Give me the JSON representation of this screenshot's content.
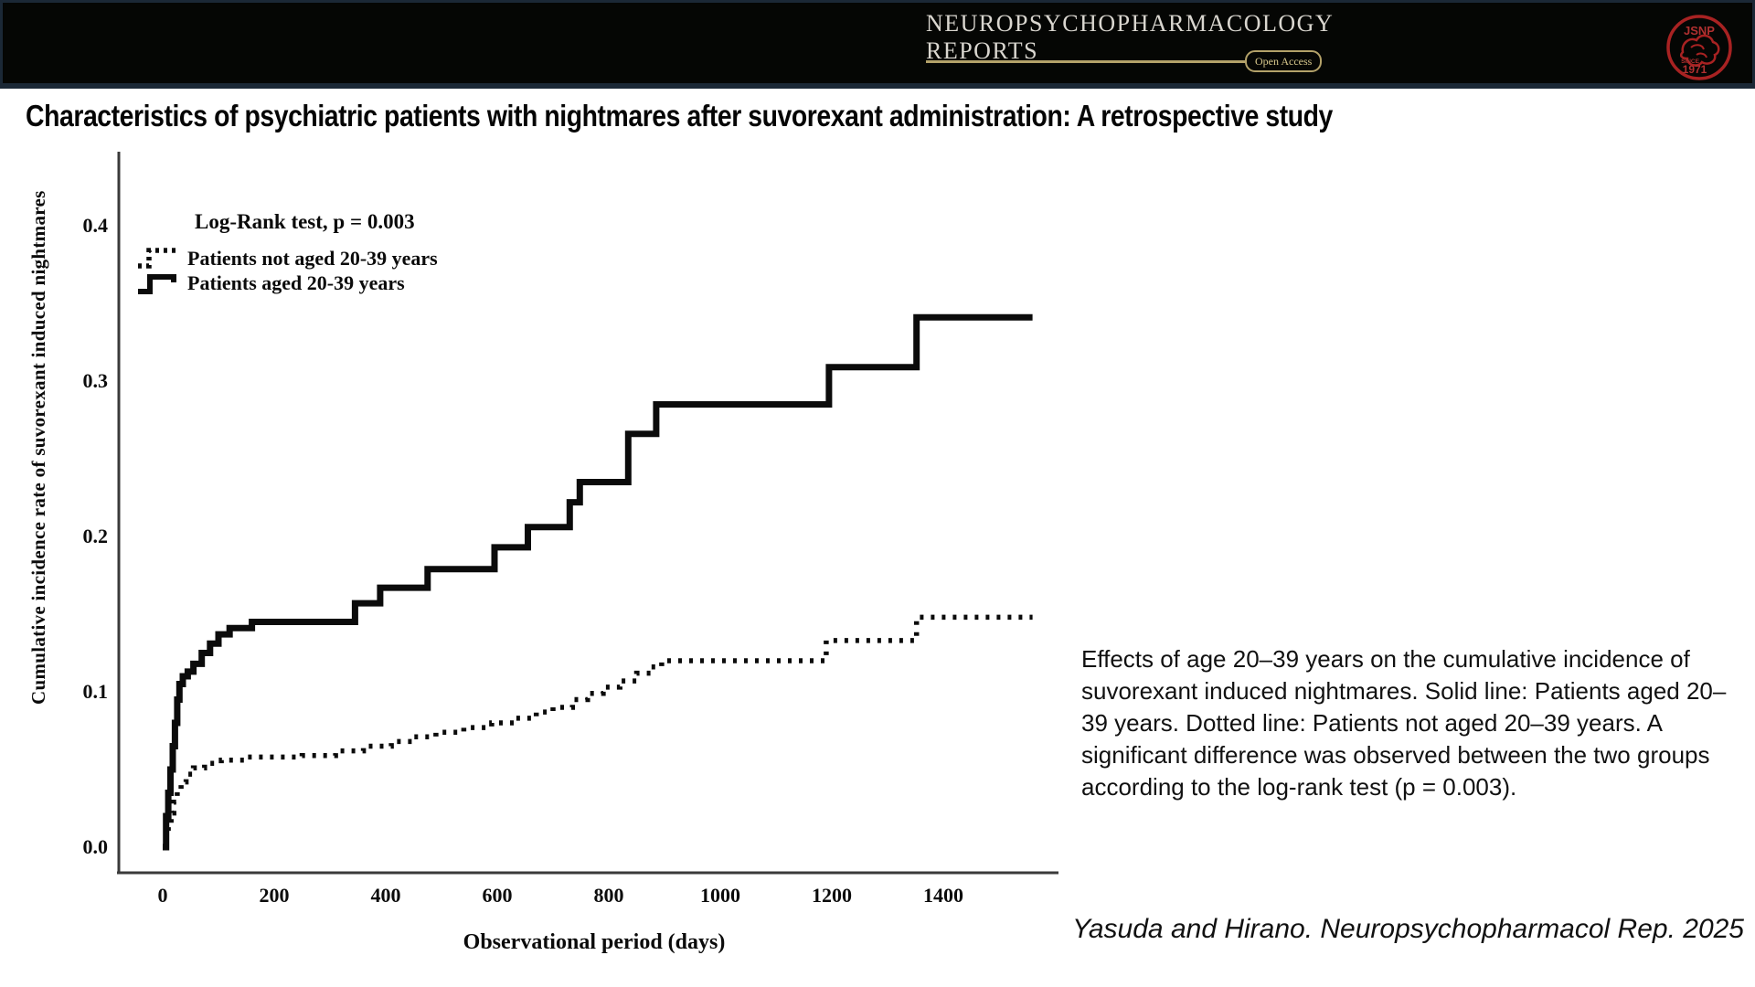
{
  "header": {
    "journal_line1": "NEUROPSYCHOPHARMACOLOGY",
    "journal_line2": "REPORTS",
    "open_access_label": "Open Access",
    "logo_acronym": "JSNP",
    "logo_since": "SINCE",
    "logo_year": "1971",
    "colors": {
      "bar_background": "#050604",
      "border_navy": "#1b2836",
      "gold": "#b3a169",
      "journal_text": "#d9d6cf",
      "logo_red": "#a82222"
    }
  },
  "title": "Characteristics of psychiatric patients with nightmares after suvorexant administration: A retrospective study",
  "chart_data": {
    "type": "line",
    "subtype": "kaplan-meier cumulative incidence step curves",
    "annotation": "Log-Rank test, p = 0.003",
    "xlabel": "Observational period (days)",
    "ylabel": "Cumulative incidence rate of suvorexant induced nightmares",
    "xlim": [
      0,
      1600
    ],
    "ylim": [
      0,
      0.42
    ],
    "x_ticks": [
      "0",
      "200",
      "400",
      "600",
      "800",
      "1000",
      "1200",
      "1400"
    ],
    "y_ticks": [
      "0.0",
      "0.1",
      "0.2",
      "0.3",
      "0.4"
    ],
    "grid": false,
    "legend_position": "upper left inside plot",
    "line_color": "#0b0b0b",
    "series": [
      {
        "name": "Patients not aged 20-39 years",
        "style": "dotted",
        "x": [
          0,
          6,
          10,
          15,
          20,
          26,
          33,
          42,
          55,
          75,
          105,
          150,
          250,
          310,
          360,
          410,
          450,
          490,
          540,
          590,
          630,
          670,
          700,
          735,
          762,
          790,
          820,
          850,
          875,
          895,
          1190,
          1352,
          1560
        ],
        "y": [
          0,
          0.008,
          0.015,
          0.022,
          0.029,
          0.036,
          0.042,
          0.047,
          0.051,
          0.054,
          0.056,
          0.058,
          0.059,
          0.062,
          0.065,
          0.068,
          0.071,
          0.074,
          0.077,
          0.08,
          0.083,
          0.087,
          0.09,
          0.095,
          0.099,
          0.103,
          0.107,
          0.112,
          0.116,
          0.12,
          0.133,
          0.148,
          0.148
        ]
      },
      {
        "name": "Patients aged 20-39 years",
        "style": "solid",
        "x": [
          0,
          6,
          10,
          14,
          18,
          22,
          26,
          30,
          36,
          45,
          55,
          70,
          85,
          100,
          120,
          160,
          345,
          390,
          475,
          595,
          655,
          730,
          748,
          835,
          885,
          1195,
          1352,
          1560
        ],
        "y": [
          0,
          0.02,
          0.035,
          0.05,
          0.065,
          0.08,
          0.095,
          0.105,
          0.11,
          0.113,
          0.118,
          0.125,
          0.131,
          0.137,
          0.141,
          0.145,
          0.157,
          0.167,
          0.179,
          0.193,
          0.206,
          0.222,
          0.235,
          0.266,
          0.285,
          0.309,
          0.341,
          0.341
        ]
      }
    ]
  },
  "figure_caption": "Effects of age 20–39 years on the cumulative incidence of suvorexant induced nightmares. Solid line: Patients aged 20–39 years. Dotted line: Patients not aged 20–39 years. A significant difference was observed between the two groups according to the log-rank test (p = 0.003).",
  "citation": "Yasuda and Hirano. Neuropsychopharmacol Rep. 2025"
}
